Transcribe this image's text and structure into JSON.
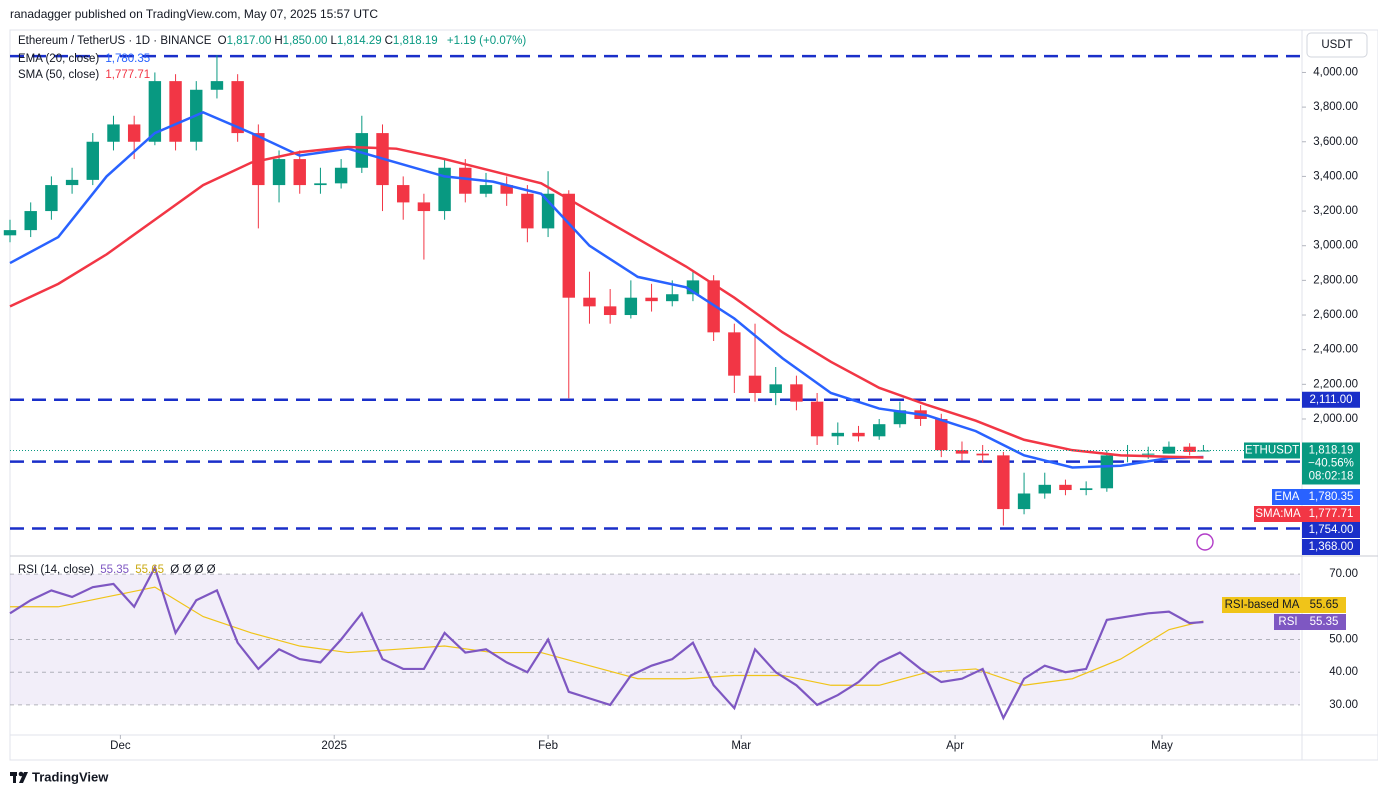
{
  "header": {
    "publisher": "ranadagger published on TradingView.com, May 07, 2025 15:57 UTC",
    "footer": "TradingView"
  },
  "chart_data": [
    {
      "type": "candlestick",
      "title": "Ethereum / TetherUS · 1D · BINANCE",
      "currency": "USDT",
      "symbol": "ETHUSDT",
      "ohlc_legend": [
        {
          "key": "O",
          "label": "1,817.00"
        },
        {
          "key": "H",
          "label": "1,850.00"
        },
        {
          "key": "L",
          "label": "1,814.29"
        },
        {
          "key": "C",
          "label": "1,818.19"
        }
      ],
      "change_label": "+1.19 (+0.07%)",
      "change_pct_label": "−40.56%",
      "countdown": "08:02:18",
      "up_color": "#089981",
      "down_color": "#f23645",
      "x": [
        0,
        3,
        6,
        9,
        12,
        15,
        18,
        21,
        24,
        27,
        30,
        33,
        36,
        39,
        42,
        45,
        48,
        51,
        54,
        57,
        60,
        63,
        66,
        69,
        72,
        75,
        78,
        81,
        84,
        87,
        90,
        93,
        96,
        99,
        102,
        105,
        108,
        111,
        114,
        117,
        120,
        123,
        126,
        129,
        132,
        135,
        138,
        141,
        144,
        147,
        150,
        153,
        156,
        159,
        162,
        165,
        168,
        171,
        173
      ],
      "open": [
        3060,
        3090,
        3200,
        3350,
        3380,
        3600,
        3700,
        3600,
        3950,
        3600,
        3900,
        3950,
        3650,
        3350,
        3500,
        3350,
        3360,
        3450,
        3650,
        3350,
        3250,
        3200,
        3450,
        3300,
        3350,
        3300,
        3100,
        3300,
        2700,
        2650,
        2600,
        2700,
        2680,
        2720,
        2800,
        2500,
        2250,
        2150,
        2200,
        2100,
        1900,
        1920,
        1900,
        1970,
        2050,
        2000,
        1820,
        1800,
        1790,
        1480,
        1570,
        1620,
        1590,
        1600,
        1790,
        1795,
        1800,
        1840,
        1817
      ],
      "high": [
        3150,
        3250,
        3400,
        3450,
        3650,
        3750,
        3750,
        4000,
        3990,
        3950,
        4100,
        3990,
        3700,
        3550,
        3550,
        3450,
        3500,
        3750,
        3700,
        3400,
        3300,
        3500,
        3500,
        3420,
        3400,
        3350,
        3430,
        3320,
        2850,
        2750,
        2800,
        2780,
        2800,
        2850,
        2830,
        2550,
        2550,
        2300,
        2250,
        2150,
        1980,
        1960,
        2000,
        2100,
        2080,
        2030,
        1870,
        1850,
        1810,
        1690,
        1690,
        1650,
        1640,
        1820,
        1850,
        1840,
        1870,
        1860,
        1850
      ],
      "low": [
        3020,
        3050,
        3150,
        3300,
        3350,
        3550,
        3500,
        3580,
        3550,
        3550,
        3850,
        3600,
        3100,
        3250,
        3300,
        3300,
        3330,
        3420,
        3200,
        3150,
        2920,
        3150,
        3250,
        3280,
        3230,
        3020,
        3050,
        2120,
        2550,
        2550,
        2580,
        2620,
        2650,
        2680,
        2450,
        2150,
        2100,
        2080,
        2050,
        1850,
        1850,
        1870,
        1880,
        1950,
        1960,
        1780,
        1760,
        1750,
        1385,
        1450,
        1540,
        1560,
        1560,
        1580,
        1750,
        1770,
        1800,
        1790,
        1814.29
      ],
      "close": [
        3090,
        3200,
        3350,
        3380,
        3600,
        3700,
        3600,
        3950,
        3600,
        3900,
        3950,
        3650,
        3350,
        3500,
        3350,
        3360,
        3450,
        3650,
        3350,
        3250,
        3200,
        3450,
        3300,
        3350,
        3300,
        3100,
        3300,
        2700,
        2650,
        2600,
        2700,
        2680,
        2720,
        2800,
        2500,
        2250,
        2150,
        2200,
        2100,
        1900,
        1920,
        1900,
        1970,
        2050,
        2000,
        1820,
        1800,
        1790,
        1480,
        1570,
        1620,
        1590,
        1600,
        1790,
        1795,
        1800,
        1840,
        1810,
        1818.19
      ],
      "xlim": [
        0,
        187
      ],
      "xticks": [
        {
          "value": 16,
          "label": "Dec"
        },
        {
          "value": 47,
          "label": "2025"
        },
        {
          "value": 78,
          "label": "Feb"
        },
        {
          "value": 106,
          "label": "Mar"
        },
        {
          "value": 137,
          "label": "Apr"
        },
        {
          "value": 167,
          "label": "May"
        }
      ],
      "ylim": [
        1215,
        4245
      ],
      "yticks": [
        {
          "value": 4000,
          "label": "4,000.00"
        },
        {
          "value": 3800,
          "label": "3,800.00"
        },
        {
          "value": 3600,
          "label": "3,600.00"
        },
        {
          "value": 3400,
          "label": "3,400.00"
        },
        {
          "value": 3200,
          "label": "3,200.00"
        },
        {
          "value": 3000,
          "label": "3,000.00"
        },
        {
          "value": 2800,
          "label": "2,800.00"
        },
        {
          "value": 2600,
          "label": "2,600.00"
        },
        {
          "value": 2400,
          "label": "2,400.00"
        },
        {
          "value": 2200,
          "label": "2,200.00"
        },
        {
          "value": 2000,
          "label": "2,000.00"
        }
      ],
      "level_color": "#1a2fc9",
      "levels": [
        {
          "value": 4094
        },
        {
          "value": 2111,
          "label": "2,111.00"
        },
        {
          "value": 1754,
          "label": "1,754.00"
        },
        {
          "value": 1368,
          "label": "1,368.00"
        }
      ],
      "overlays": [
        {
          "name": "EMA (20, close)",
          "short": "EMA",
          "color": "#2962ff",
          "last_label": "1,780.35",
          "x": [
            0,
            7,
            14,
            21,
            28,
            35,
            42,
            49,
            56,
            63,
            70,
            77,
            84,
            91,
            98,
            105,
            112,
            119,
            126,
            133,
            140,
            147,
            154,
            161,
            168,
            173
          ],
          "values": [
            2900,
            3050,
            3400,
            3650,
            3770,
            3650,
            3520,
            3560,
            3480,
            3400,
            3370,
            3300,
            3000,
            2820,
            2760,
            2580,
            2350,
            2150,
            2060,
            2020,
            1930,
            1790,
            1720,
            1730,
            1775,
            1780.35
          ]
        },
        {
          "name": "SMA (50, close)",
          "short": "SMA:MA",
          "color": "#f23645",
          "last_label": "1,777.71",
          "x": [
            0,
            7,
            14,
            21,
            28,
            35,
            42,
            49,
            56,
            63,
            70,
            77,
            84,
            91,
            98,
            105,
            112,
            119,
            126,
            133,
            140,
            147,
            154,
            161,
            168,
            173
          ],
          "values": [
            2650,
            2780,
            2950,
            3150,
            3350,
            3480,
            3540,
            3570,
            3560,
            3500,
            3430,
            3360,
            3200,
            3040,
            2880,
            2700,
            2500,
            2330,
            2180,
            2080,
            1990,
            1880,
            1820,
            1790,
            1782,
            1777.71
          ]
        }
      ]
    },
    {
      "type": "line",
      "title": "RSI (14, close)",
      "extra": "Ø Ø Ø Ø",
      "xlim": [
        0,
        187
      ],
      "ylim": [
        20.8,
        74.3
      ],
      "band": [
        30,
        70
      ],
      "yticks": [
        {
          "value": 70,
          "label": "70.00"
        },
        {
          "value": 50,
          "label": "50.00"
        },
        {
          "value": 40,
          "label": "40.00"
        },
        {
          "value": 30,
          "label": "30.00"
        }
      ],
      "series": [
        {
          "name": "RSI",
          "color": "#7e57c2",
          "last_label": "55.35",
          "x": [
            0,
            3,
            6,
            9,
            12,
            15,
            18,
            21,
            24,
            27,
            30,
            33,
            36,
            39,
            42,
            45,
            48,
            51,
            54,
            57,
            60,
            63,
            66,
            69,
            72,
            75,
            78,
            81,
            84,
            87,
            90,
            93,
            96,
            99,
            102,
            105,
            108,
            111,
            114,
            117,
            120,
            123,
            126,
            129,
            132,
            135,
            138,
            141,
            144,
            147,
            150,
            153,
            156,
            159,
            162,
            165,
            168,
            171,
            173
          ],
          "values": [
            58,
            62,
            65,
            63,
            66,
            67,
            60,
            72,
            52,
            62,
            65,
            49,
            41,
            47,
            44,
            43,
            50,
            58,
            44,
            41,
            41,
            52,
            46,
            47,
            43,
            40,
            50,
            34,
            32,
            30,
            39,
            42,
            44,
            49,
            36,
            29,
            47,
            40,
            36,
            30,
            33,
            37,
            43,
            46,
            41,
            37,
            38,
            41,
            26,
            38,
            42,
            40,
            41,
            56,
            57,
            58,
            58.5,
            55,
            55.35
          ]
        },
        {
          "name": "RSI-based MA",
          "color": "#f0c419",
          "last_label": "55.65",
          "x": [
            0,
            7,
            14,
            21,
            28,
            35,
            42,
            49,
            56,
            63,
            70,
            77,
            84,
            91,
            98,
            105,
            112,
            119,
            126,
            133,
            140,
            147,
            154,
            161,
            168,
            173
          ],
          "values": [
            60,
            60,
            63,
            66,
            57,
            52,
            48,
            46,
            47,
            48,
            46,
            46,
            42,
            38,
            38,
            39,
            39,
            36,
            36,
            40,
            41,
            36,
            38,
            44,
            53,
            55.65
          ]
        }
      ]
    }
  ]
}
